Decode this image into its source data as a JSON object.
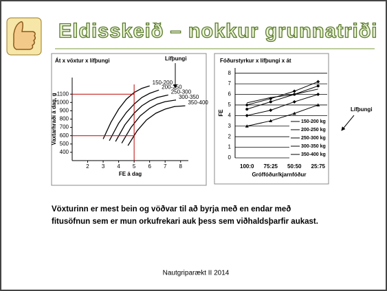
{
  "slide": {
    "title": "Eldisskeið – nokkur grunnatriði",
    "body": [
      "Vöxturinn er mest bein og vöðvar til að byrja með en endar með",
      "fitusöfnun sem er mun orkufrekari auk þess sem viðhaldsþarfir aukast."
    ],
    "footer": "Nautgriparækt II 2014"
  },
  "chart_data": [
    {
      "type": "line",
      "title": "Át x vöxtur x lífþungi",
      "annotation": "Lífþungi",
      "xlabel": "FE á dag",
      "ylabel": "Vaxtarhraði á dag, g",
      "xlim": [
        1,
        8.5
      ],
      "ylim": [
        300,
        1300
      ],
      "xticks": [
        2,
        3,
        4,
        5,
        6,
        7,
        8
      ],
      "yticks": [
        400,
        500,
        600,
        700,
        800,
        900,
        1000,
        1100
      ],
      "ref_lines": {
        "color": "#c00000",
        "x": 5,
        "y": [
          1100,
          600
        ]
      },
      "series": [
        {
          "name": "150-200",
          "color": "#000000",
          "x": [
            3,
            3.5,
            4,
            4.5,
            5,
            5.5,
            6
          ],
          "values": [
            560,
            760,
            920,
            1040,
            1120,
            1170,
            1200
          ]
        },
        {
          "name": "200-250",
          "color": "#000000",
          "x": [
            3.4,
            4,
            4.5,
            5,
            5.5,
            6,
            6.6
          ],
          "values": [
            540,
            750,
            880,
            980,
            1060,
            1110,
            1150
          ]
        },
        {
          "name": "250-300",
          "color": "#000000",
          "x": [
            3.8,
            4.4,
            5,
            5.5,
            6,
            6.5,
            7.2
          ],
          "values": [
            530,
            730,
            870,
            960,
            1020,
            1060,
            1090
          ]
        },
        {
          "name": "300-350",
          "color": "#000000",
          "x": [
            4.2,
            4.8,
            5.4,
            6,
            6.5,
            7,
            7.7
          ],
          "values": [
            510,
            700,
            840,
            930,
            980,
            1010,
            1030
          ]
        },
        {
          "name": "350-400",
          "color": "#000000",
          "x": [
            4.6,
            5.2,
            5.8,
            6.4,
            7,
            7.6,
            8.3
          ],
          "values": [
            480,
            660,
            790,
            870,
            920,
            950,
            960
          ]
        }
      ]
    },
    {
      "type": "line",
      "title": "Fóðurstyrkur x lífþungi x át",
      "annotation": "Lífþungi",
      "xlabel": "Gróffóður/kjarnfóður",
      "ylabel": "FE",
      "categories": [
        "100:0",
        "75:25",
        "50:50",
        "25:75"
      ],
      "ylim": [
        0,
        8.5
      ],
      "yticks": [
        0,
        1,
        2,
        3,
        4,
        5,
        6,
        7,
        8
      ],
      "grid": true,
      "series": [
        {
          "name": "150-200 kg",
          "color": "#000000",
          "values": [
            5.0,
            5.6,
            6.3,
            7.2
          ]
        },
        {
          "name": "200-250 kg",
          "color": "#000000",
          "values": [
            4.6,
            5.3,
            6.0,
            6.8
          ]
        },
        {
          "name": "250-300 kg",
          "color": "#000000",
          "values": [
            4.0,
            4.5,
            5.3,
            6.0
          ]
        },
        {
          "name": "300-350 kg",
          "color": "#000000",
          "values": [
            3.0,
            3.5,
            4.2,
            5.0
          ]
        },
        {
          "name": "350-400 kg",
          "color": "#000000",
          "values": [
            5.2,
            5.7,
            6.0,
            6.5
          ]
        }
      ]
    }
  ]
}
